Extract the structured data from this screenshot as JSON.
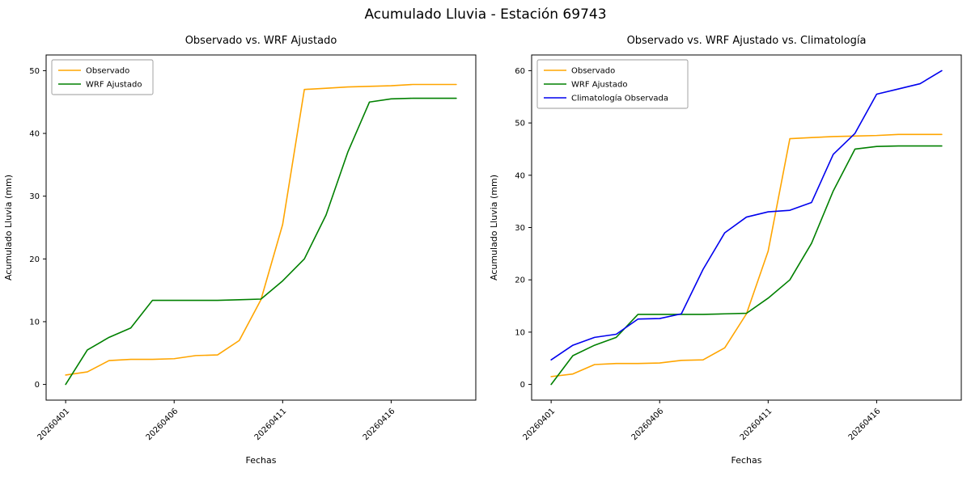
{
  "figure": {
    "title": "Acumulado Lluvia - Estación 69743"
  },
  "chart_data": [
    {
      "type": "line",
      "title": "Observado vs. WRF Ajustado",
      "xlabel": "Fechas",
      "ylabel": "Acumulado Lluvia (mm)",
      "x": [
        "20260401",
        "20260402",
        "20260403",
        "20260404",
        "20260405",
        "20260406",
        "20260407",
        "20260408",
        "20260409",
        "20260410",
        "20260411",
        "20260412",
        "20260413",
        "20260414",
        "20260415",
        "20260416",
        "20260417",
        "20260418",
        "20260419"
      ],
      "x_ticks": [
        "20260401",
        "20260406",
        "20260411",
        "20260416"
      ],
      "ylim": [
        0,
        50
      ],
      "yticks": [
        0,
        10,
        20,
        30,
        40,
        50
      ],
      "legend_position": "upper left",
      "grid": false,
      "series": [
        {
          "name": "Observado",
          "color": "#ffa500",
          "values": [
            1.5,
            2.0,
            3.8,
            4.0,
            4.0,
            4.1,
            4.6,
            4.7,
            7.0,
            13.5,
            25.5,
            47.0,
            47.2,
            47.4,
            47.5,
            47.6,
            47.8,
            47.8,
            47.8
          ]
        },
        {
          "name": "WRF Ajustado",
          "color": "#008000",
          "values": [
            0.0,
            5.5,
            7.5,
            9.0,
            13.4,
            13.4,
            13.4,
            13.4,
            13.5,
            13.6,
            16.5,
            20.0,
            27.0,
            37.0,
            45.0,
            45.5,
            45.6,
            45.6,
            45.6
          ]
        }
      ]
    },
    {
      "type": "line",
      "title": "Observado vs. WRF Ajustado vs. Climatología",
      "xlabel": "Fechas",
      "ylabel": "Acumulado Lluvia (mm)",
      "x": [
        "20260401",
        "20260402",
        "20260403",
        "20260404",
        "20260405",
        "20260406",
        "20260407",
        "20260408",
        "20260409",
        "20260410",
        "20260411",
        "20260412",
        "20260413",
        "20260414",
        "20260415",
        "20260416",
        "20260417",
        "20260418",
        "20260419"
      ],
      "x_ticks": [
        "20260401",
        "20260406",
        "20260411",
        "20260416"
      ],
      "ylim": [
        0,
        60
      ],
      "yticks": [
        0,
        10,
        20,
        30,
        40,
        50,
        60
      ],
      "legend_position": "upper left",
      "grid": false,
      "series": [
        {
          "name": "Observado",
          "color": "#ffa500",
          "values": [
            1.5,
            2.0,
            3.8,
            4.0,
            4.0,
            4.1,
            4.6,
            4.7,
            7.0,
            13.5,
            25.5,
            47.0,
            47.2,
            47.4,
            47.5,
            47.6,
            47.8,
            47.8,
            47.8
          ]
        },
        {
          "name": "WRF Ajustado",
          "color": "#008000",
          "values": [
            0.0,
            5.5,
            7.5,
            9.0,
            13.4,
            13.4,
            13.4,
            13.4,
            13.5,
            13.6,
            16.5,
            20.0,
            27.0,
            37.0,
            45.0,
            45.5,
            45.6,
            45.6,
            45.6
          ]
        },
        {
          "name": "Climatología Observada",
          "color": "#0000ee",
          "values": [
            4.7,
            7.5,
            9.0,
            9.6,
            12.5,
            12.6,
            13.5,
            22.0,
            29.0,
            32.0,
            33.0,
            33.3,
            34.8,
            44.0,
            48.0,
            55.5,
            56.5,
            57.5,
            60.0
          ]
        }
      ]
    }
  ]
}
